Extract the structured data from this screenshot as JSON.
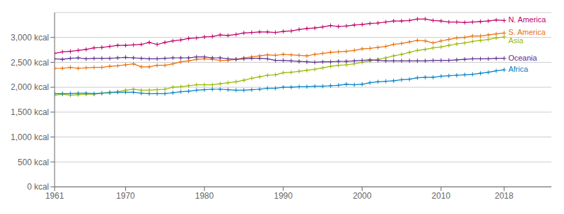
{
  "chart_data": {
    "type": "line",
    "x": [
      1961,
      1962,
      1963,
      1964,
      1965,
      1966,
      1967,
      1968,
      1969,
      1970,
      1971,
      1972,
      1973,
      1974,
      1975,
      1976,
      1977,
      1978,
      1979,
      1980,
      1981,
      1982,
      1983,
      1984,
      1985,
      1986,
      1987,
      1988,
      1989,
      1990,
      1991,
      1992,
      1993,
      1994,
      1995,
      1996,
      1997,
      1998,
      1999,
      2000,
      2001,
      2002,
      2003,
      2004,
      2005,
      2006,
      2007,
      2008,
      2009,
      2010,
      2011,
      2012,
      2013,
      2014,
      2015,
      2016,
      2017,
      2018
    ],
    "xlim": [
      1961,
      2024
    ],
    "xticks": [
      1961,
      1970,
      1980,
      1990,
      2000,
      2010,
      2018
    ],
    "ylim": [
      0,
      3500
    ],
    "yticks": [
      {
        "value": 0,
        "label": "0 kcal"
      },
      {
        "value": 500,
        "label": "500 kcal"
      },
      {
        "value": 1000,
        "label": "1,000 kcal"
      },
      {
        "value": 1500,
        "label": "1,500 kcal"
      },
      {
        "value": 2000,
        "label": "2,000 kcal"
      },
      {
        "value": 2500,
        "label": "2,500 kcal"
      },
      {
        "value": 3000,
        "label": "3,000 kcal"
      }
    ],
    "grid": "y",
    "marker": "plus",
    "series": [
      {
        "name": "N. America",
        "color": "#c0006a",
        "values": [
          2680,
          2710,
          2720,
          2740,
          2760,
          2790,
          2800,
          2820,
          2840,
          2840,
          2850,
          2860,
          2900,
          2860,
          2900,
          2930,
          2950,
          2980,
          2990,
          3010,
          3020,
          3050,
          3040,
          3060,
          3090,
          3100,
          3110,
          3110,
          3100,
          3120,
          3130,
          3160,
          3180,
          3190,
          3210,
          3240,
          3220,
          3230,
          3250,
          3260,
          3280,
          3290,
          3310,
          3330,
          3330,
          3340,
          3370,
          3370,
          3340,
          3330,
          3310,
          3310,
          3300,
          3310,
          3320,
          3330,
          3350,
          3340
        ]
      },
      {
        "name": "S. America",
        "color": "#e8700a",
        "values": [
          2380,
          2380,
          2400,
          2380,
          2390,
          2400,
          2400,
          2420,
          2430,
          2450,
          2470,
          2410,
          2410,
          2440,
          2440,
          2470,
          2510,
          2530,
          2560,
          2570,
          2560,
          2540,
          2540,
          2560,
          2590,
          2610,
          2630,
          2650,
          2640,
          2660,
          2650,
          2640,
          2630,
          2660,
          2680,
          2700,
          2710,
          2720,
          2740,
          2770,
          2780,
          2800,
          2820,
          2860,
          2880,
          2910,
          2940,
          2930,
          2890,
          2930,
          2960,
          2990,
          3000,
          3030,
          3030,
          3050,
          3070,
          3090
        ]
      },
      {
        "name": "Asia",
        "color": "#97b800",
        "values": [
          1840,
          1860,
          1840,
          1850,
          1860,
          1860,
          1880,
          1900,
          1910,
          1940,
          1960,
          1940,
          1940,
          1950,
          1960,
          2000,
          2010,
          2030,
          2050,
          2050,
          2050,
          2070,
          2090,
          2110,
          2140,
          2180,
          2210,
          2240,
          2250,
          2290,
          2300,
          2320,
          2340,
          2360,
          2390,
          2420,
          2440,
          2450,
          2470,
          2500,
          2530,
          2560,
          2590,
          2630,
          2660,
          2700,
          2740,
          2760,
          2790,
          2810,
          2840,
          2870,
          2890,
          2920,
          2940,
          2960,
          2990,
          3010
        ]
      },
      {
        "name": "Oceania",
        "color": "#5b2d8e",
        "values": [
          2570,
          2560,
          2580,
          2590,
          2570,
          2580,
          2580,
          2580,
          2590,
          2600,
          2590,
          2580,
          2570,
          2570,
          2580,
          2590,
          2590,
          2590,
          2610,
          2610,
          2590,
          2590,
          2570,
          2560,
          2570,
          2580,
          2580,
          2570,
          2540,
          2540,
          2530,
          2520,
          2510,
          2500,
          2510,
          2510,
          2520,
          2520,
          2530,
          2540,
          2550,
          2540,
          2530,
          2530,
          2530,
          2530,
          2530,
          2530,
          2540,
          2540,
          2540,
          2550,
          2560,
          2570,
          2570,
          2570,
          2580,
          2580
        ]
      },
      {
        "name": "Africa",
        "color": "#0082c8",
        "values": [
          1870,
          1870,
          1870,
          1880,
          1880,
          1870,
          1880,
          1890,
          1900,
          1900,
          1900,
          1880,
          1870,
          1870,
          1870,
          1890,
          1910,
          1920,
          1940,
          1950,
          1960,
          1960,
          1950,
          1940,
          1940,
          1950,
          1960,
          1980,
          1980,
          2000,
          2000,
          2010,
          2010,
          2020,
          2020,
          2030,
          2040,
          2060,
          2050,
          2060,
          2090,
          2110,
          2120,
          2130,
          2150,
          2160,
          2190,
          2200,
          2200,
          2220,
          2230,
          2240,
          2250,
          2260,
          2280,
          2300,
          2330,
          2350
        ]
      }
    ]
  }
}
